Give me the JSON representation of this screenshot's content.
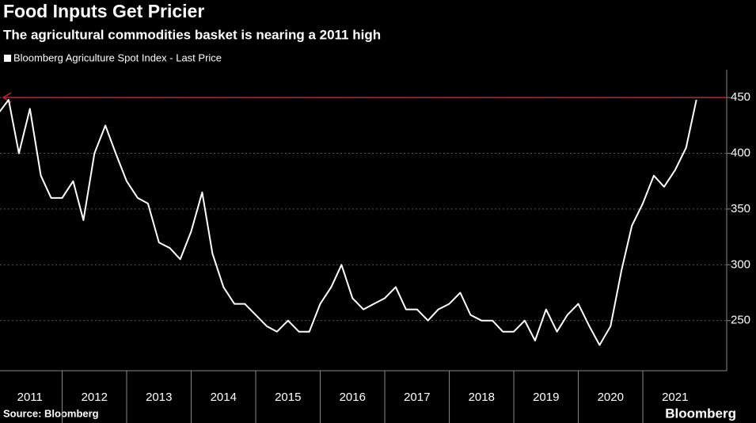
{
  "chart_data": {
    "type": "line",
    "title": "Food Inputs Get Pricier",
    "subtitle": "The agricultural commodities basket is nearing a 2011 high",
    "source": "Source: Bloomberg",
    "brand": "Bloomberg",
    "x": [
      2011,
      2011.17,
      2011.33,
      2011.5,
      2011.67,
      2011.83,
      2012,
      2012.17,
      2012.33,
      2012.5,
      2012.67,
      2012.83,
      2013,
      2013.17,
      2013.33,
      2013.5,
      2013.67,
      2013.83,
      2014,
      2014.17,
      2014.33,
      2014.5,
      2014.67,
      2014.83,
      2015,
      2015.17,
      2015.33,
      2015.5,
      2015.67,
      2015.83,
      2016,
      2016.17,
      2016.33,
      2016.5,
      2016.67,
      2016.83,
      2017,
      2017.17,
      2017.33,
      2017.5,
      2017.67,
      2017.83,
      2018,
      2018.17,
      2018.33,
      2018.5,
      2018.67,
      2018.83,
      2019,
      2019.17,
      2019.33,
      2019.5,
      2019.67,
      2019.83,
      2020,
      2020.17,
      2020.33,
      2020.5,
      2020.67,
      2020.83,
      2021,
      2021.17,
      2021.33,
      2021.5,
      2021.67,
      2021.83
    ],
    "series": [
      {
        "name": "Bloomberg Agriculture Spot Index - Last Price",
        "color": "#ffffff",
        "values": [
          435,
          448,
          400,
          440,
          380,
          360,
          360,
          375,
          340,
          400,
          425,
          400,
          375,
          360,
          355,
          320,
          315,
          305,
          330,
          365,
          310,
          280,
          265,
          265,
          255,
          245,
          240,
          250,
          240,
          240,
          265,
          280,
          300,
          270,
          260,
          265,
          270,
          280,
          260,
          260,
          250,
          260,
          265,
          275,
          255,
          250,
          250,
          240,
          240,
          250,
          232,
          260,
          240,
          255,
          265,
          245,
          228,
          245,
          295,
          335,
          355,
          380,
          370,
          385,
          405,
          448
        ]
      }
    ],
    "reference_line": {
      "value": 450,
      "color": "#b0263a"
    },
    "xlim": [
      2011,
      2022.3
    ],
    "xticks": [
      2011,
      2012,
      2013,
      2014,
      2015,
      2016,
      2017,
      2018,
      2019,
      2020,
      2021
    ],
    "ylim": [
      205,
      475
    ],
    "yticks": [
      250,
      300,
      350,
      400,
      450
    ],
    "grid": true
  }
}
